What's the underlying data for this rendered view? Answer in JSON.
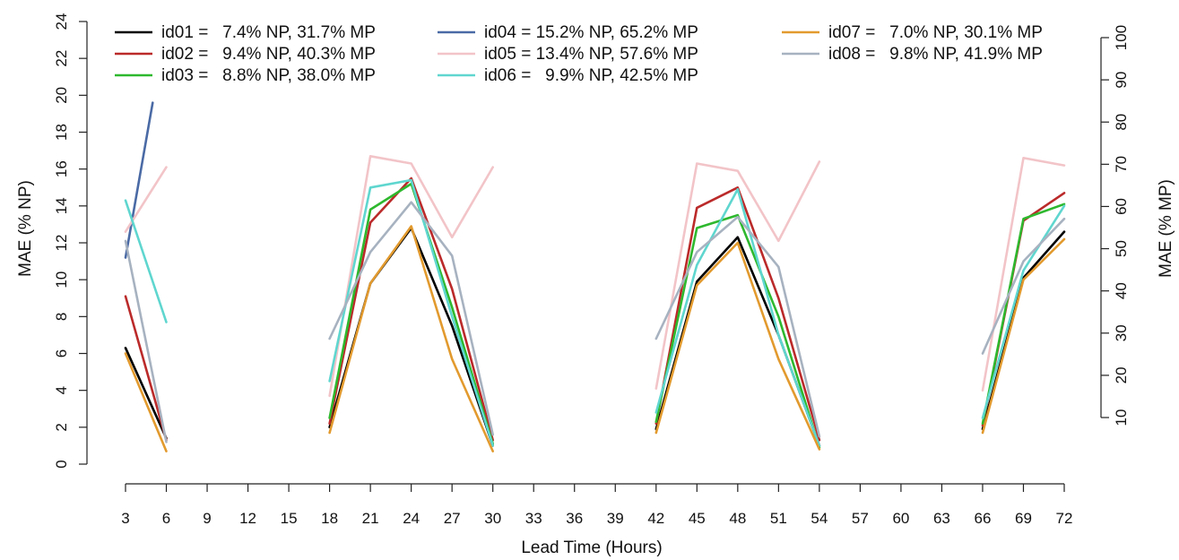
{
  "chart_data": {
    "type": "line",
    "xlabel": "Lead Time (Hours)",
    "ylabel": "MAE (% NP)",
    "y2label": "MAE (% MP)",
    "xlim": [
      3,
      72
    ],
    "ylim": [
      0,
      24
    ],
    "y2lim": [
      10,
      100
    ],
    "x_ticks": [
      3,
      6,
      9,
      12,
      15,
      18,
      21,
      24,
      27,
      30,
      33,
      36,
      39,
      42,
      45,
      48,
      51,
      54,
      57,
      60,
      63,
      66,
      69,
      72
    ],
    "y_ticks": [
      0,
      2,
      4,
      6,
      8,
      10,
      12,
      14,
      16,
      18,
      20,
      22,
      24
    ],
    "y2_ticks": [
      10,
      20,
      30,
      40,
      50,
      60,
      70,
      80,
      90,
      100
    ],
    "legend_position": "top",
    "grid": false,
    "series": [
      {
        "name": "id01",
        "label": "id01 =   7.4% NP, 31.7% MP",
        "color": "#000000",
        "segments": [
          [
            [
              3,
              6.3
            ],
            [
              6,
              1.4
            ]
          ],
          [
            [
              18,
              2.0
            ],
            [
              21,
              9.8
            ],
            [
              24,
              12.8
            ],
            [
              27,
              7.5
            ],
            [
              30,
              1.0
            ]
          ],
          [
            [
              42,
              1.9
            ],
            [
              45,
              9.9
            ],
            [
              48,
              12.3
            ],
            [
              51,
              7.0
            ],
            [
              54,
              1.0
            ]
          ],
          [
            [
              66,
              1.9
            ],
            [
              69,
              10.1
            ],
            [
              72,
              12.6
            ]
          ]
        ]
      },
      {
        "name": "id02",
        "label": "id02 =   9.4% NP, 40.3% MP",
        "color": "#bb2a2a",
        "segments": [
          [
            [
              3,
              9.1
            ],
            [
              6,
              1.3
            ]
          ],
          [
            [
              18,
              2.2
            ],
            [
              21,
              13.1
            ],
            [
              24,
              15.5
            ],
            [
              27,
              9.5
            ],
            [
              30,
              1.3
            ]
          ],
          [
            [
              42,
              2.2
            ],
            [
              45,
              13.9
            ],
            [
              48,
              15.0
            ],
            [
              51,
              9.0
            ],
            [
              54,
              1.3
            ]
          ],
          [
            [
              66,
              2.1
            ],
            [
              69,
              13.2
            ],
            [
              72,
              14.7
            ]
          ]
        ]
      },
      {
        "name": "id03",
        "label": "id03 =   8.8% NP, 38.0% MP",
        "color": "#2eb82e",
        "segments": [
          [
            [
              18,
              2.5
            ],
            [
              21,
              13.8
            ],
            [
              24,
              15.2
            ],
            [
              27,
              8.5
            ],
            [
              30,
              1.1
            ]
          ],
          [
            [
              42,
              2.3
            ],
            [
              45,
              12.8
            ],
            [
              48,
              13.5
            ],
            [
              51,
              8.0
            ],
            [
              54,
              0.9
            ]
          ],
          [
            [
              66,
              2.2
            ],
            [
              69,
              13.3
            ],
            [
              72,
              14.1
            ]
          ]
        ]
      },
      {
        "name": "id04",
        "label": "id04 = 15.2% NP, 65.2% MP",
        "color": "#4a6aa5",
        "segments": [
          [
            [
              3,
              11.2
            ],
            [
              5,
              19.6
            ]
          ]
        ]
      },
      {
        "name": "id05",
        "label": "id05 = 13.4% NP, 57.6% MP",
        "color": "#f2c4c8",
        "segments": [
          [
            [
              3,
              12.6
            ],
            [
              6,
              16.1
            ]
          ],
          [
            [
              18,
              3.7
            ],
            [
              21,
              16.7
            ],
            [
              24,
              16.3
            ],
            [
              27,
              12.3
            ],
            [
              30,
              16.1
            ]
          ],
          [
            [
              42,
              4.1
            ],
            [
              45,
              16.3
            ],
            [
              48,
              15.9
            ],
            [
              51,
              12.1
            ],
            [
              54,
              16.4
            ]
          ],
          [
            [
              66,
              4.0
            ],
            [
              69,
              16.6
            ],
            [
              72,
              16.2
            ]
          ]
        ]
      },
      {
        "name": "id06",
        "label": "id06 =   9.9% NP, 42.5% MP",
        "color": "#5fd6cf",
        "segments": [
          [
            [
              3,
              14.3
            ],
            [
              6,
              7.7
            ]
          ],
          [
            [
              18,
              4.5
            ],
            [
              21,
              15.0
            ],
            [
              24,
              15.4
            ],
            [
              27,
              8.0
            ],
            [
              30,
              1.0
            ]
          ],
          [
            [
              42,
              2.8
            ],
            [
              45,
              10.8
            ],
            [
              48,
              14.9
            ],
            [
              51,
              7.0
            ],
            [
              54,
              1.0
            ]
          ],
          [
            [
              66,
              2.5
            ],
            [
              69,
              10.5
            ],
            [
              72,
              14.0
            ]
          ]
        ]
      },
      {
        "name": "id07",
        "label": "id07 =   7.0% NP, 30.1% MP",
        "color": "#e29a2e",
        "segments": [
          [
            [
              3,
              6.0
            ],
            [
              6,
              0.7
            ]
          ],
          [
            [
              18,
              1.7
            ],
            [
              21,
              9.8
            ],
            [
              24,
              12.9
            ],
            [
              27,
              5.7
            ],
            [
              30,
              0.7
            ]
          ],
          [
            [
              42,
              1.7
            ],
            [
              45,
              9.7
            ],
            [
              48,
              12.0
            ],
            [
              51,
              5.7
            ],
            [
              54,
              0.8
            ]
          ],
          [
            [
              66,
              1.7
            ],
            [
              69,
              10.0
            ],
            [
              72,
              12.2
            ]
          ]
        ]
      },
      {
        "name": "id08",
        "label": "id08 =   9.8% NP, 41.9% MP",
        "color": "#a7b2c0",
        "segments": [
          [
            [
              3,
              12.1
            ],
            [
              6,
              1.2
            ]
          ],
          [
            [
              18,
              6.8
            ],
            [
              21,
              11.5
            ],
            [
              24,
              14.2
            ],
            [
              27,
              11.3
            ],
            [
              30,
              1.6
            ]
          ],
          [
            [
              42,
              6.8
            ],
            [
              45,
              11.5
            ],
            [
              48,
              13.4
            ],
            [
              51,
              10.7
            ],
            [
              54,
              1.5
            ]
          ],
          [
            [
              66,
              6.0
            ],
            [
              69,
              11.0
            ],
            [
              72,
              13.3
            ]
          ]
        ]
      }
    ]
  }
}
